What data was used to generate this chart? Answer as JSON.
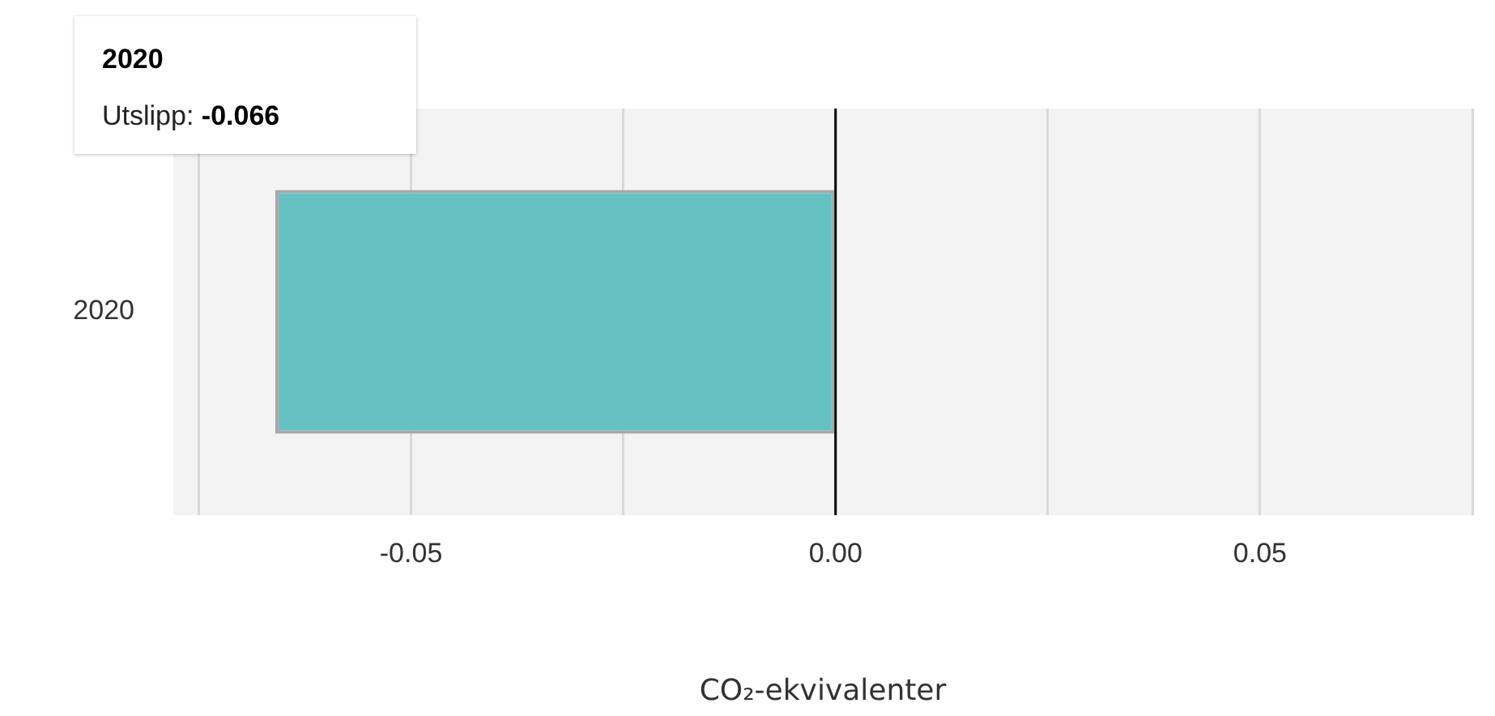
{
  "chart_data": {
    "type": "bar",
    "orientation": "horizontal",
    "xlabel": "CO₂-ekvivalenter",
    "categories": [
      "2020"
    ],
    "series": [
      {
        "color": "#66c2c2",
        "values": [
          -0.066
        ]
      }
    ],
    "annotations": [
      "2020",
      "Utslipp: -0.066"
    ],
    "xlim": [
      -0.078,
      0.075
    ],
    "xticks": [
      {
        "value": -0.075,
        "label": null
      },
      {
        "value": -0.05,
        "label": "-0.05"
      },
      {
        "value": -0.025,
        "label": null
      },
      {
        "value": 0,
        "label": "0.00"
      },
      {
        "value": 0.025,
        "label": null
      },
      {
        "value": 0.05,
        "label": "0.05"
      },
      {
        "value": 0.075,
        "label": null
      }
    ],
    "ref_lines": [
      {
        "axis": "x",
        "value": 0,
        "color": "#000000"
      }
    ],
    "grid": "x",
    "legend": false
  }
}
